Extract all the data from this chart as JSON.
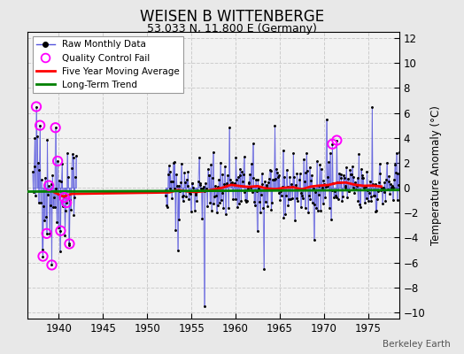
{
  "title": "WEISEN B WITTENBERGE",
  "subtitle": "53.033 N, 11.800 E (Germany)",
  "ylabel": "Temperature Anomaly (°C)",
  "credit": "Berkeley Earth",
  "ylim": [
    -10.5,
    12.5
  ],
  "xlim": [
    1936.5,
    1978.5
  ],
  "xticks": [
    1940,
    1945,
    1950,
    1955,
    1960,
    1965,
    1970,
    1975
  ],
  "yticks": [
    -10,
    -8,
    -6,
    -4,
    -2,
    0,
    2,
    4,
    6,
    8,
    10,
    12
  ],
  "fig_bg_color": "#e8e8e8",
  "plot_bg_color": "#f2f2f2",
  "line_color": "#5555dd",
  "ma_color": "red",
  "trend_color": "green",
  "qc_color": "magenta",
  "seed": 42,
  "start_year": 1937,
  "end_year": 1978,
  "gap_start": 1942,
  "gap_end": 1952,
  "trend_intercept": -0.25,
  "trend_slope": 0.003
}
